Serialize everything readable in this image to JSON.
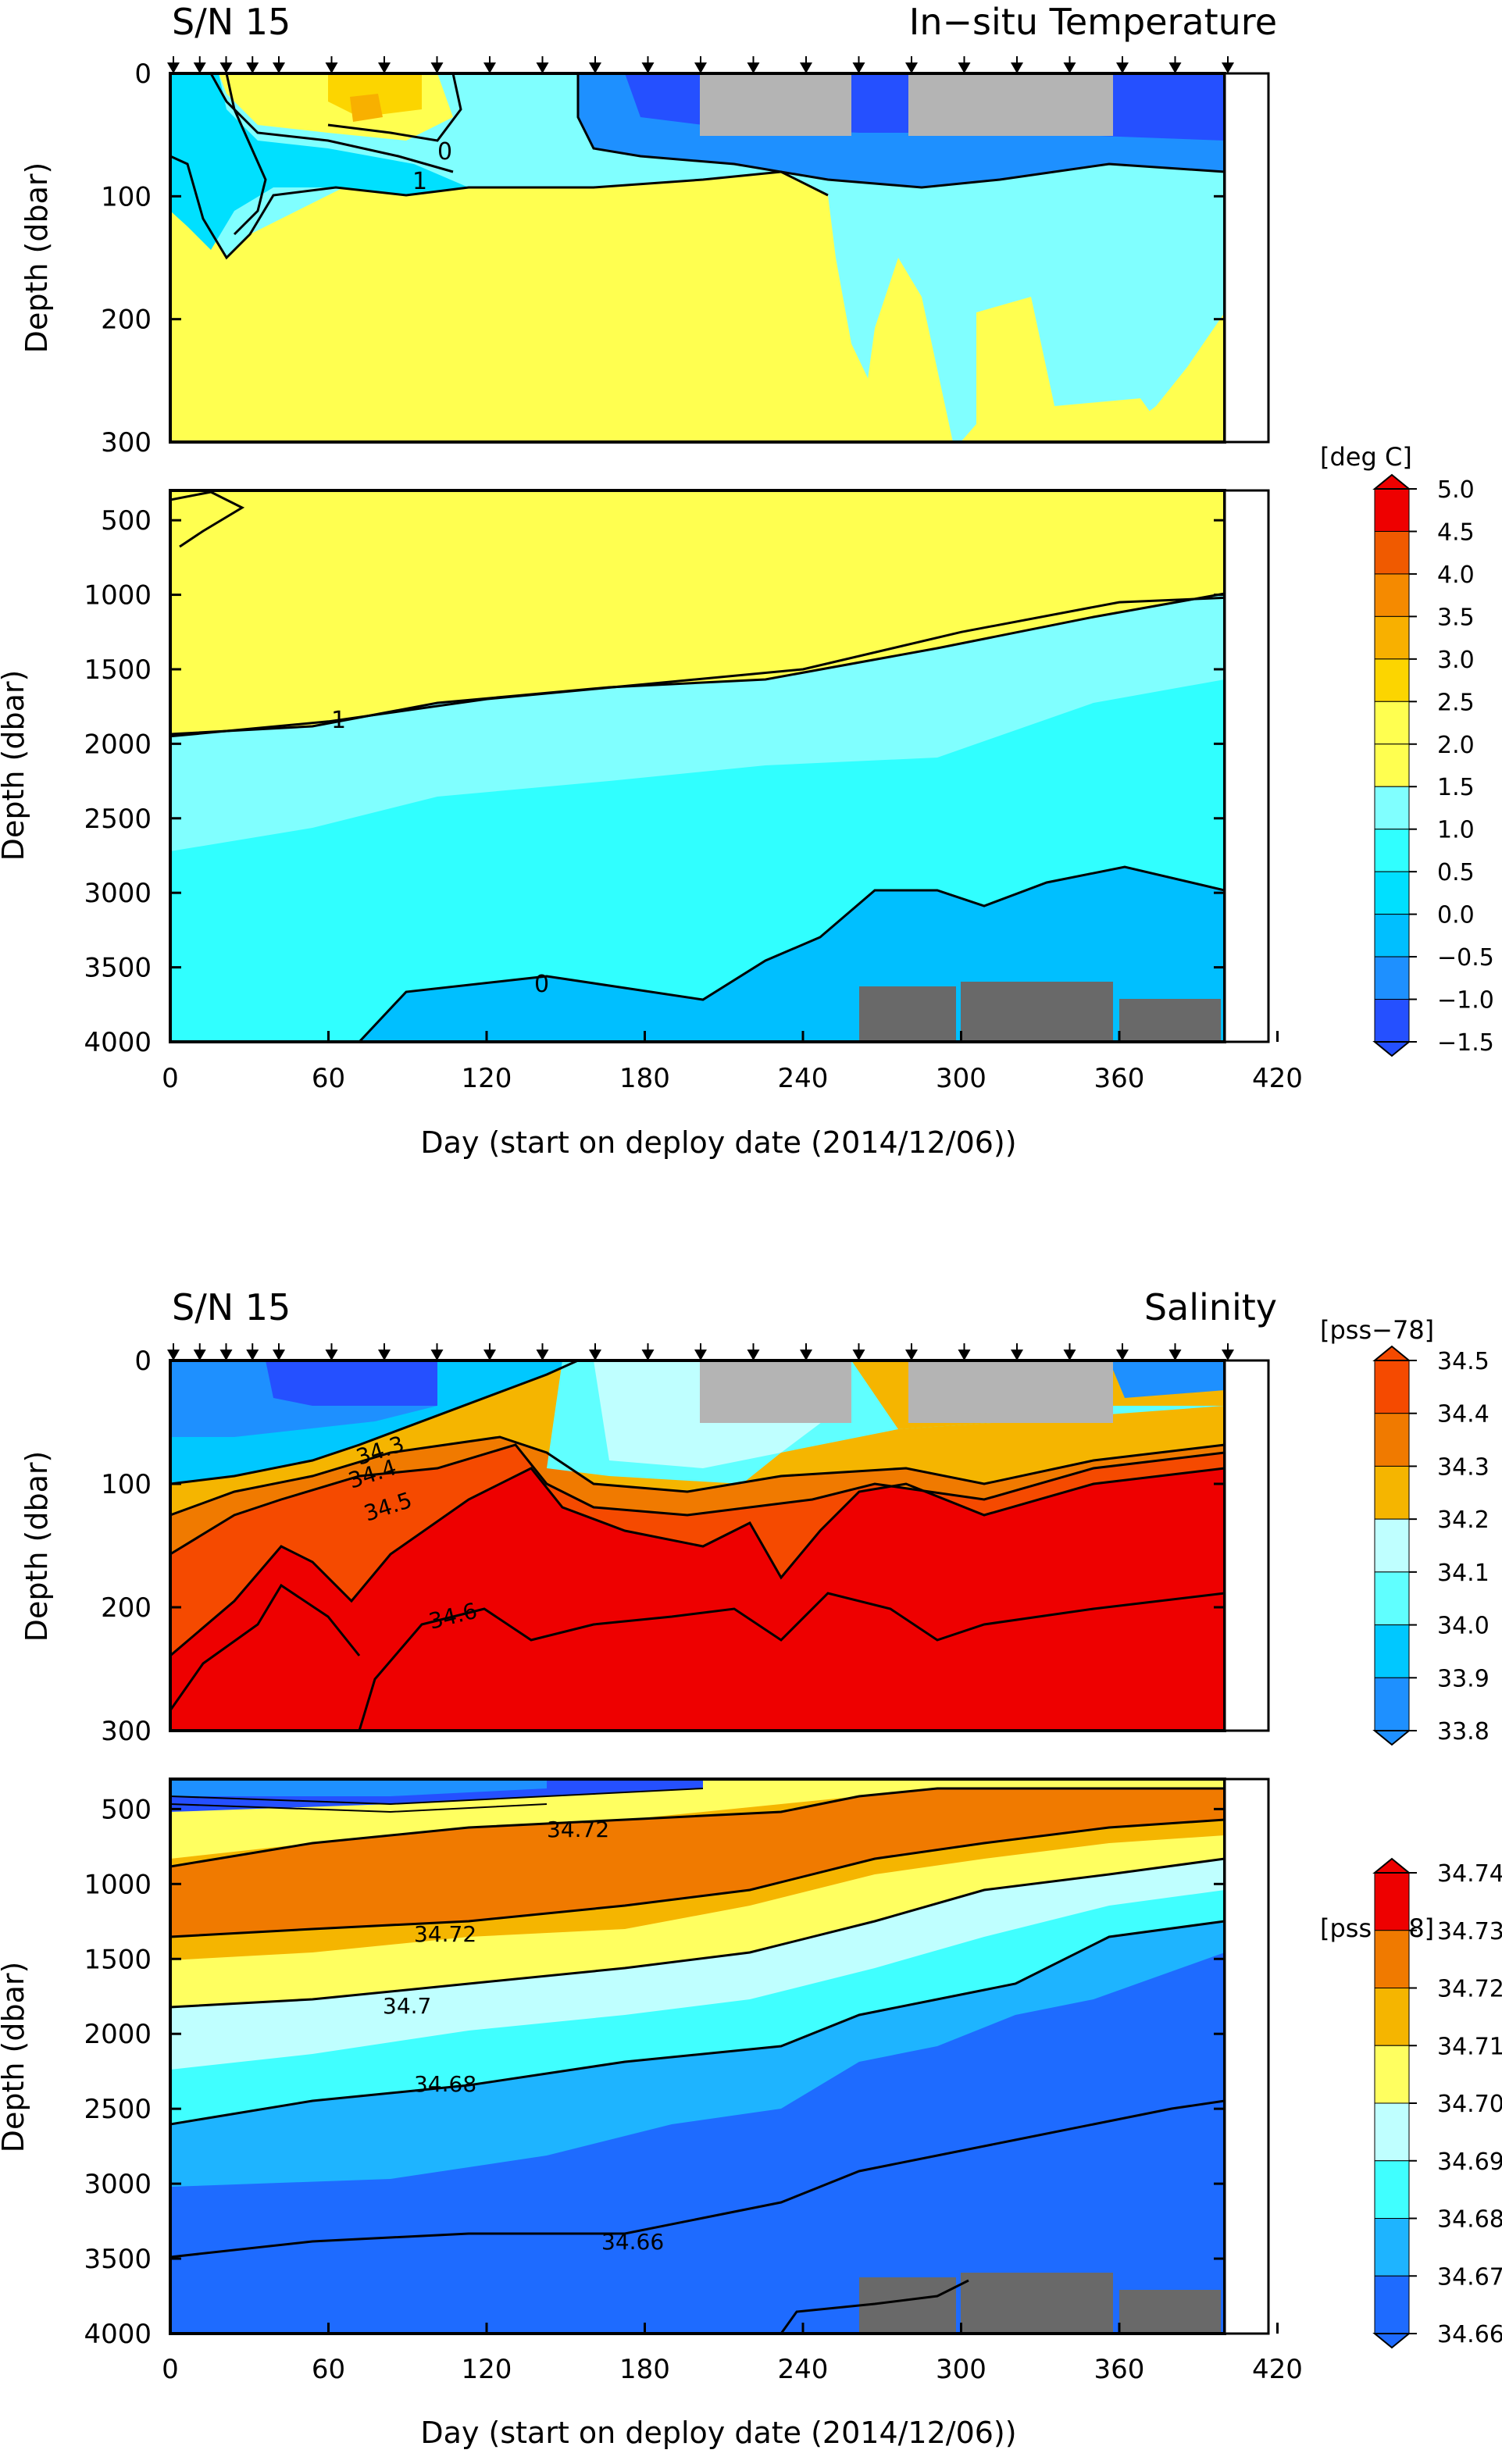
{
  "chart_data": [
    {
      "type": "heatmap",
      "serial": "S/N 15",
      "title": "In−situ Temperature",
      "xlabel": "Day (start on deploy date (2014/12/06))",
      "ylabel": "Depth (dbar)",
      "xlim": [
        0,
        420
      ],
      "xticks": [
        "0",
        "60",
        "120",
        "180",
        "240",
        "300",
        "360",
        "420"
      ],
      "upper_panel": {
        "ylim": [
          0,
          300
        ],
        "yticks": [
          "0",
          "100",
          "200",
          "300"
        ]
      },
      "lower_panel": {
        "ylim": [
          300,
          4000
        ],
        "yticks": [
          "500",
          "1000",
          "1500",
          "2000",
          "2500",
          "3000",
          "3500",
          "4000"
        ]
      },
      "colorbar": {
        "unit": "[deg C]",
        "levels": [
          "5.0",
          "4.5",
          "4.0",
          "3.5",
          "3.0",
          "2.5",
          "2.0",
          "1.5",
          "1.0",
          "0.5",
          "0.0",
          "−0.5",
          "−1.0",
          "−1.5"
        ],
        "colors": [
          "#ee0000",
          "#f05a00",
          "#f58a00",
          "#f8b000",
          "#fcd500",
          "#ffff50",
          "#ffff50",
          "#80ffff",
          "#30ffff",
          "#00e0ff",
          "#00bfff",
          "#1e90ff",
          "#2550ff"
        ]
      },
      "contour_labels": [
        "0",
        "1",
        "1",
        "0"
      ],
      "series": [
        {
          "contour": "1",
          "depth_dbar": [
            1950,
            1850,
            1700,
            1600,
            1500,
            1250,
            1050,
            1020
          ]
        },
        {
          "contour": "0",
          "depth_dbar": [
            4000,
            3800,
            3750,
            3500,
            3000,
            2950,
            2900,
            2950
          ]
        }
      ],
      "x": [
        0,
        60,
        120,
        180,
        240,
        300,
        360,
        400
      ]
    },
    {
      "type": "heatmap",
      "serial": "S/N 15",
      "title": "Salinity",
      "xlabel": "Day (start on deploy date (2014/12/06))",
      "ylabel": "Depth (dbar)",
      "xlim": [
        0,
        420
      ],
      "xticks": [
        "0",
        "60",
        "120",
        "180",
        "240",
        "300",
        "360",
        "420"
      ],
      "upper_panel": {
        "ylim": [
          0,
          300
        ],
        "yticks": [
          "0",
          "100",
          "200",
          "300"
        ]
      },
      "lower_panel": {
        "ylim": [
          300,
          4000
        ],
        "yticks": [
          "500",
          "1000",
          "1500",
          "2000",
          "2500",
          "3000",
          "3500",
          "4000"
        ]
      },
      "colorbar_upper": {
        "unit": "[pss−78]",
        "levels": [
          "34.5",
          "34.4",
          "34.3",
          "34.2",
          "34.1",
          "34.0",
          "33.9",
          "33.8"
        ],
        "colors": [
          "#f54a00",
          "#f07a00",
          "#f5b500",
          "#bfffff",
          "#60ffff",
          "#00c8ff",
          "#1e90ff"
        ]
      },
      "colorbar_lower": {
        "unit": "[pss−78]",
        "levels": [
          "34.74",
          "34.73",
          "34.72",
          "34.71",
          "34.70",
          "34.69",
          "34.68",
          "34.67",
          "34.66"
        ],
        "colors": [
          "#ee0000",
          "#f07a00",
          "#f5b500",
          "#ffff60",
          "#bfffff",
          "#40ffff",
          "#1eb4ff",
          "#1e6bff"
        ]
      },
      "contour_labels": [
        "34.3",
        "34.4",
        "34.5",
        "34.6",
        "34.72",
        "34.72",
        "34.7",
        "34.68",
        "34.66"
      ]
    }
  ]
}
